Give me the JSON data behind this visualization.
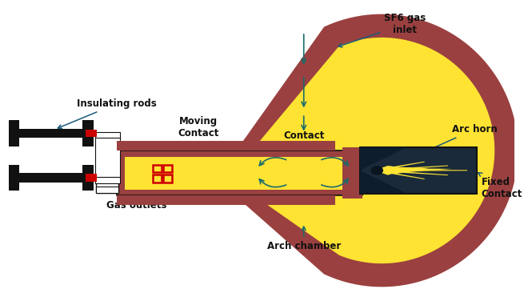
{
  "bg_color": "#ffffff",
  "brown": "#9B4040",
  "yellow": "#FFE333",
  "dark_navy": "#1a2a3a",
  "black": "#111111",
  "red_coil": "#cc0000",
  "arrow_color": "#1a6a6a",
  "label_arrow_color": "#1a5a7a",
  "labels": {
    "sf6_gas_inlet": "SF6 gas\ninlet",
    "insulating_rods": "Insulating rods",
    "moving_contact": "Moving\nContact",
    "contact": "Contact",
    "arc_horn": "Arc horn",
    "fixed_contact": "Fixed\nContact",
    "gas_outlets": "Gas outlets",
    "arch_chamber": "Arch chamber"
  }
}
